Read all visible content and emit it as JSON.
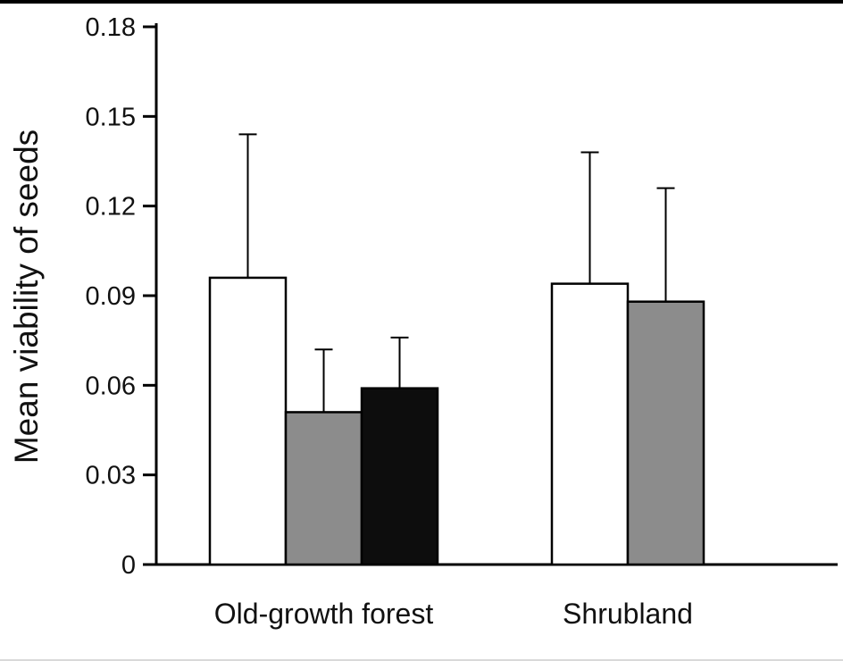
{
  "chart_data": {
    "type": "bar",
    "title": "",
    "xlabel": "",
    "ylabel": "Mean viability of seeds",
    "ylim": [
      0,
      0.18
    ],
    "yticks": [
      0,
      0.03,
      0.06,
      0.09,
      0.12,
      0.15,
      0.18
    ],
    "ytick_labels": [
      "0",
      "0.03",
      "0.06",
      "0.09",
      "0.12",
      "0.15",
      "0.18"
    ],
    "grid": false,
    "legend": "none",
    "bar_outline_color": "#000000",
    "axis_color": "#000000",
    "text_color": "#111111",
    "groups": [
      {
        "label": "Old-growth forest",
        "bars": [
          {
            "name": "white-bar",
            "value": 0.096,
            "error_upper": 0.048,
            "fill": "#ffffff"
          },
          {
            "name": "gray-bar",
            "value": 0.051,
            "error_upper": 0.021,
            "fill": "#8c8c8c"
          },
          {
            "name": "black-bar",
            "value": 0.059,
            "error_upper": 0.017,
            "fill": "#0d0d0d"
          }
        ]
      },
      {
        "label": "Shrubland",
        "bars": [
          {
            "name": "white-bar",
            "value": 0.094,
            "error_upper": 0.044,
            "fill": "#ffffff"
          },
          {
            "name": "gray-bar",
            "value": 0.088,
            "error_upper": 0.038,
            "fill": "#8c8c8c"
          }
        ]
      }
    ]
  }
}
